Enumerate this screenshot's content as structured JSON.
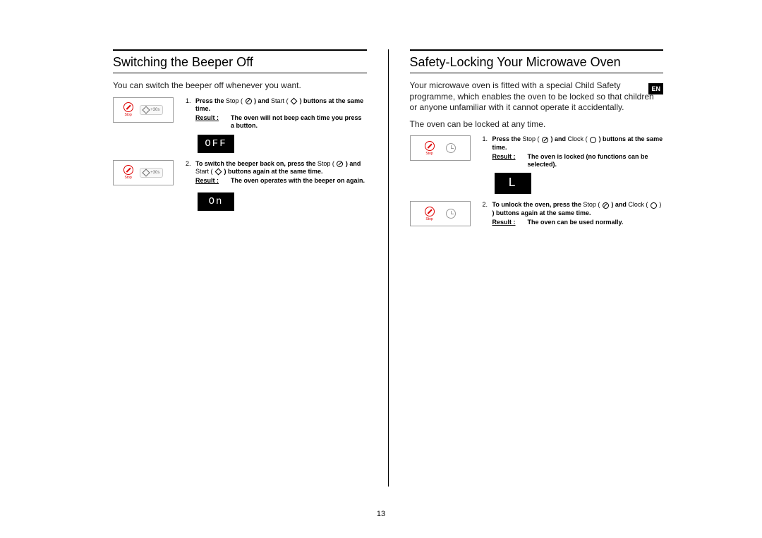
{
  "page_number": "13",
  "language_badge": "EN",
  "left": {
    "title": "Switching the Beeper Off",
    "intro": "You can switch the beeper off whenever you want.",
    "step1": {
      "num": "1.",
      "line_a": "Press the ",
      "stop": "Stop",
      "line_b": " ) and ",
      "start": "Start",
      "line_c": " ) buttons at the same time.",
      "result_label": "Result :",
      "result_text": "The oven will not beep each time you press a button."
    },
    "display1": "OFF",
    "step2": {
      "num": "2.",
      "line_a": "To switch the beeper back on, press the ",
      "stop": "Stop",
      "line_b": " ) and",
      "start": "Start",
      "line_c": " ) buttons again at the same time.",
      "result_label": "Result :",
      "result_text": "The oven operates with the beeper on again."
    },
    "display2": "On"
  },
  "right": {
    "title": "Safety-Locking Your Microwave Oven",
    "intro": "Your microwave oven is fitted with a special Child Safety programme, which enables the oven to be  locked  so that children or anyone unfamiliar with it cannot operate it accidentally.",
    "intro2": "The oven can be locked at any time.",
    "step1": {
      "num": "1.",
      "line_a": "Press the ",
      "stop": "Stop",
      "line_b": " ) and ",
      "clock": "Clock",
      "line_c": " ) buttons at the same time.",
      "result_label": "Result :",
      "result_text": "The oven is locked (no functions can be selected)."
    },
    "display1": "L",
    "step2": {
      "num": "2.",
      "line_a": "To unlock the oven, press the ",
      "stop": "Stop",
      "line_b": " ) and ",
      "clock": "Clock",
      "line_c": " ) buttons again at the same time.",
      "result_label": "Result :",
      "result_text": "The oven can be used normally."
    }
  },
  "buttons": {
    "stop_label": "Stop",
    "plus30": "+30s"
  }
}
